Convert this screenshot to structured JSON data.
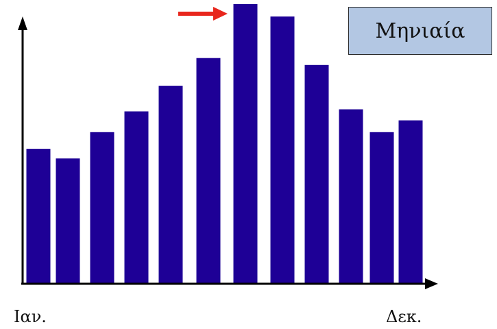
{
  "chart_data": {
    "type": "bar",
    "title": "Μηνιαία",
    "categories": [
      "1",
      "2",
      "3",
      "4",
      "5",
      "6",
      "7",
      "8",
      "9",
      "10",
      "11",
      "12"
    ],
    "values": [
      195,
      181,
      219,
      249,
      286,
      326,
      404,
      386,
      316,
      252,
      219,
      236
    ],
    "x_tick_labels": {
      "first": "Ιαν.",
      "last": "Δεκ."
    },
    "ylim": [
      0,
      400
    ],
    "xlabel": "",
    "ylabel": "",
    "grid": false,
    "legend": "none",
    "colors": {
      "bar": "#1e0096",
      "axis": "#000000",
      "highlight_arrow": "#e8261c",
      "title_box_fill": "#b3c7e3"
    },
    "highlight_category": "7"
  }
}
